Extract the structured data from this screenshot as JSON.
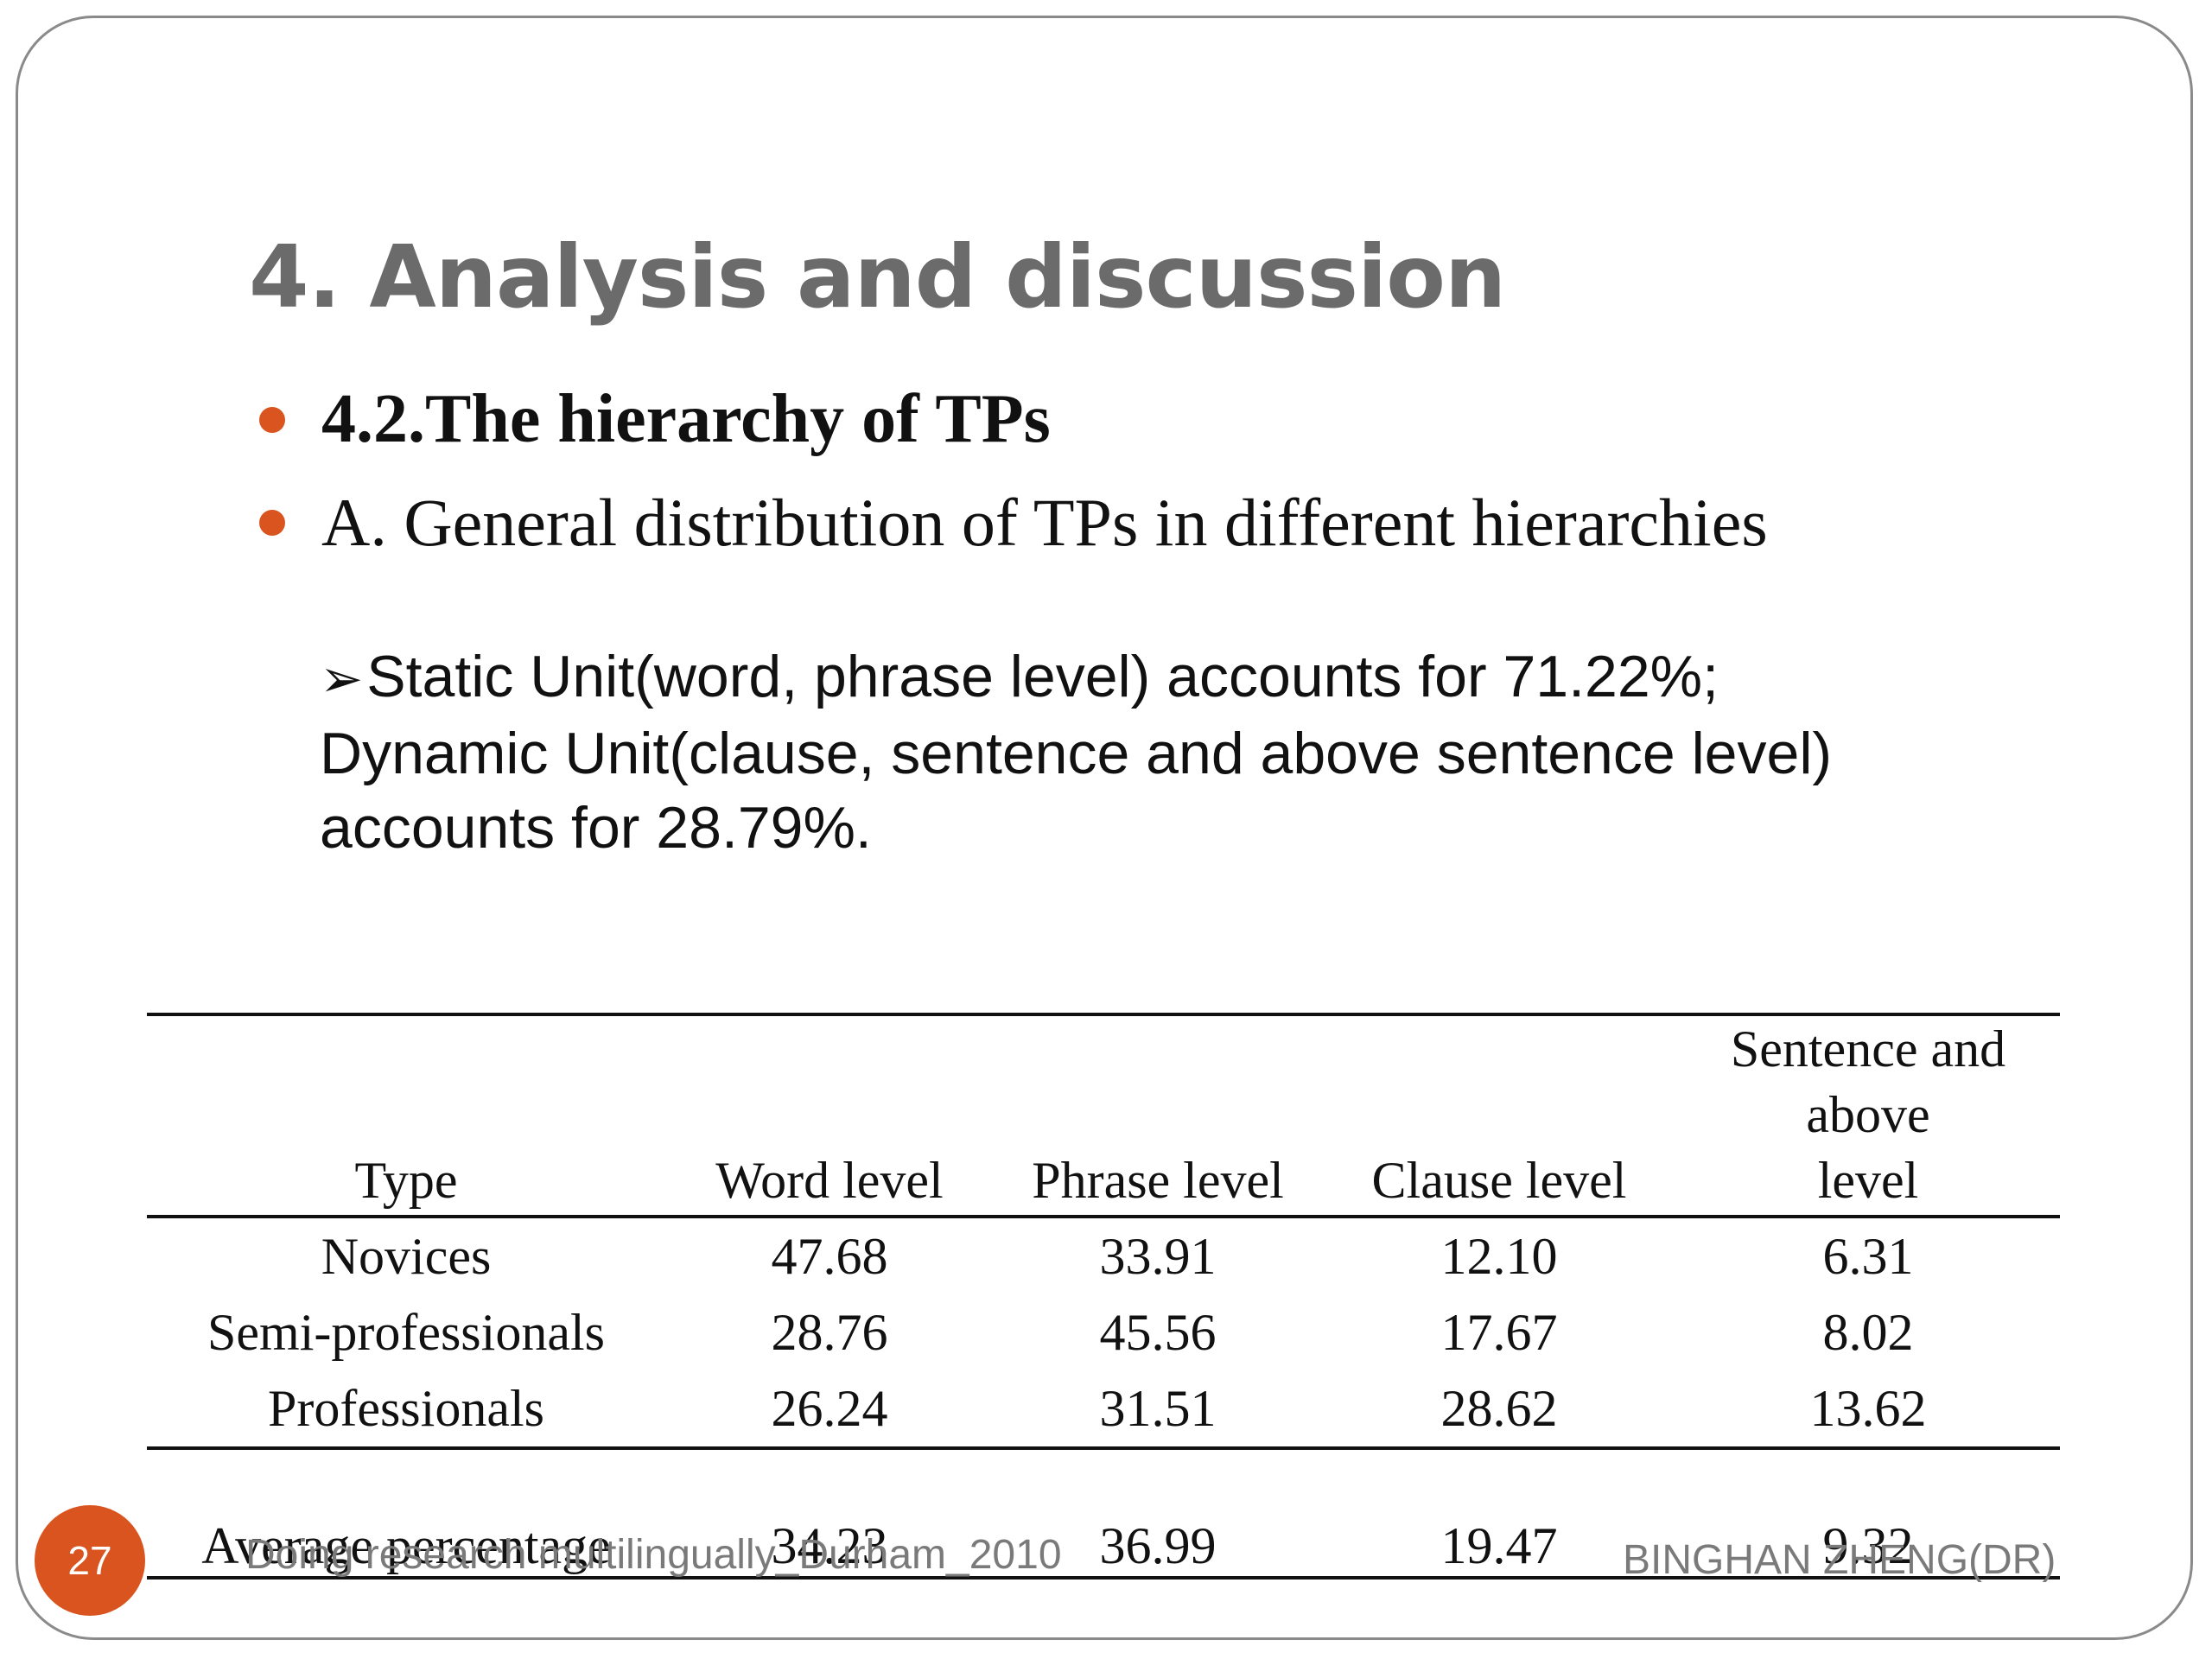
{
  "slide": {
    "title": "4. Analysis and discussion",
    "bullets": [
      "4.2.The hierarchy of TPs",
      "A. General distribution of TPs in different hierarchies"
    ],
    "note_arrow": "➢",
    "note_lines": [
      "Static Unit(word, phrase level) accounts for 71.22%;",
      "Dynamic Unit(clause, sentence and above sentence level)",
      "accounts for 28.79%."
    ],
    "bullet_color": "#d9541e"
  },
  "table": {
    "headers": {
      "type": "Type",
      "word": "Word level",
      "phrase": "Phrase level",
      "clause": "Clause level",
      "sentence_line1": "Sentence and above",
      "sentence_line2": "level"
    },
    "rows": [
      {
        "type": "Novices",
        "word": "47.68",
        "phrase": "33.91",
        "clause": "12.10",
        "sentence": "6.31"
      },
      {
        "type": "Semi-professionals",
        "word": "28.76",
        "phrase": "45.56",
        "clause": "17.67",
        "sentence": "8.02"
      },
      {
        "type": "Professionals",
        "word": "26.24",
        "phrase": "31.51",
        "clause": "28.62",
        "sentence": "13.62"
      }
    ],
    "average": {
      "type": "Average percentage",
      "word": "34.23",
      "phrase": "36.99",
      "clause": "19.47",
      "sentence": "9.32"
    }
  },
  "footer": {
    "page_number": "27",
    "left": "Doing research multilingually_Durham_2010",
    "right": "BINGHAN ZHENG(DR)"
  }
}
